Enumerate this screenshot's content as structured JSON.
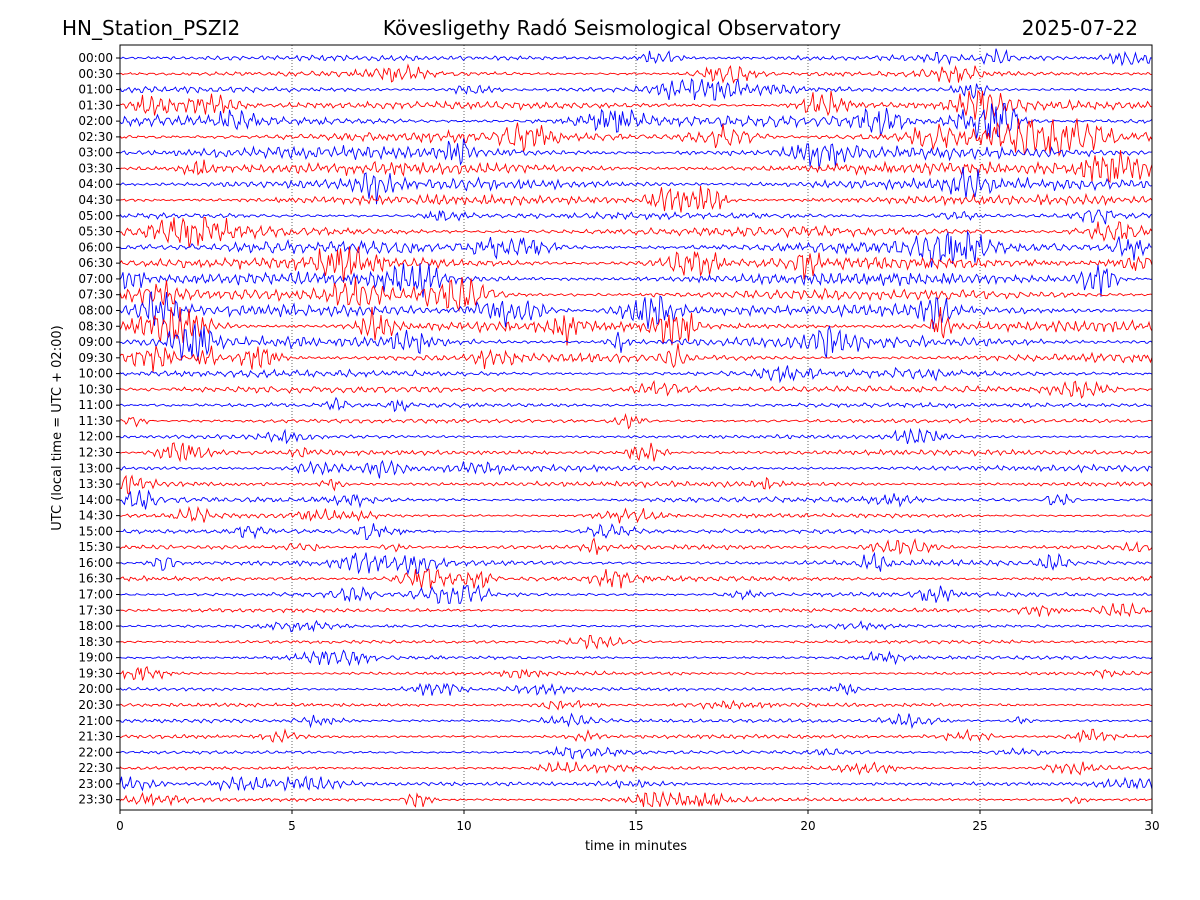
{
  "header": {
    "station": "HN_Station_PSZI2",
    "observatory": "Kövesligethy Radó Seismological Observatory",
    "date": "2025-07-22"
  },
  "chart_data": {
    "type": "line",
    "title": "Kövesligethy Radó Seismological Observatory",
    "xlabel": "time in minutes",
    "ylabel": "UTC (local time = UTC + 02:00)",
    "xlim": [
      0,
      30
    ],
    "xticks": [
      "0",
      "5",
      "10",
      "15",
      "20",
      "25",
      "30"
    ],
    "grid": "vertical dotted at x ticks",
    "colors": {
      "even_rows": "#0000ff",
      "odd_rows": "#ff0000"
    },
    "rows": [
      {
        "label": "00:00",
        "activity": 0.35
      },
      {
        "label": "00:30",
        "activity": 0.3
      },
      {
        "label": "01:00",
        "activity": 0.4
      },
      {
        "label": "01:30",
        "activity": 0.65
      },
      {
        "label": "02:00",
        "activity": 0.85
      },
      {
        "label": "02:30",
        "activity": 0.9
      },
      {
        "label": "03:00",
        "activity": 1.0
      },
      {
        "label": "03:30",
        "activity": 1.0
      },
      {
        "label": "04:00",
        "activity": 1.0
      },
      {
        "label": "04:30",
        "activity": 0.75
      },
      {
        "label": "05:00",
        "activity": 0.45
      },
      {
        "label": "05:30",
        "activity": 0.75
      },
      {
        "label": "06:00",
        "activity": 1.0
      },
      {
        "label": "06:30",
        "activity": 1.0
      },
      {
        "label": "07:00",
        "activity": 1.0
      },
      {
        "label": "07:30",
        "activity": 0.85
      },
      {
        "label": "08:00",
        "activity": 0.9
      },
      {
        "label": "08:30",
        "activity": 0.95
      },
      {
        "label": "09:00",
        "activity": 0.9
      },
      {
        "label": "09:30",
        "activity": 0.65
      },
      {
        "label": "10:00",
        "activity": 0.5
      },
      {
        "label": "10:30",
        "activity": 0.45
      },
      {
        "label": "11:00",
        "activity": 0.3
      },
      {
        "label": "11:30",
        "activity": 0.25
      },
      {
        "label": "12:00",
        "activity": 0.2
      },
      {
        "label": "12:30",
        "activity": 0.35
      },
      {
        "label": "13:00",
        "activity": 0.45
      },
      {
        "label": "13:30",
        "activity": 0.4
      },
      {
        "label": "14:00",
        "activity": 0.35
      },
      {
        "label": "14:30",
        "activity": 0.25
      },
      {
        "label": "15:00",
        "activity": 0.25
      },
      {
        "label": "15:30",
        "activity": 0.3
      },
      {
        "label": "16:00",
        "activity": 0.4
      },
      {
        "label": "16:30",
        "activity": 0.35
      },
      {
        "label": "17:00",
        "activity": 0.3
      },
      {
        "label": "17:30",
        "activity": 0.2
      },
      {
        "label": "18:00",
        "activity": 0.15
      },
      {
        "label": "18:30",
        "activity": 0.15
      },
      {
        "label": "19:00",
        "activity": 0.2
      },
      {
        "label": "19:30",
        "activity": 0.2
      },
      {
        "label": "20:00",
        "activity": 0.15
      },
      {
        "label": "20:30",
        "activity": 0.2
      },
      {
        "label": "21:00",
        "activity": 0.2
      },
      {
        "label": "21:30",
        "activity": 0.2
      },
      {
        "label": "22:00",
        "activity": 0.15
      },
      {
        "label": "22:30",
        "activity": 0.15
      },
      {
        "label": "23:00",
        "activity": 0.2
      },
      {
        "label": "23:30",
        "activity": 0.2
      }
    ]
  }
}
